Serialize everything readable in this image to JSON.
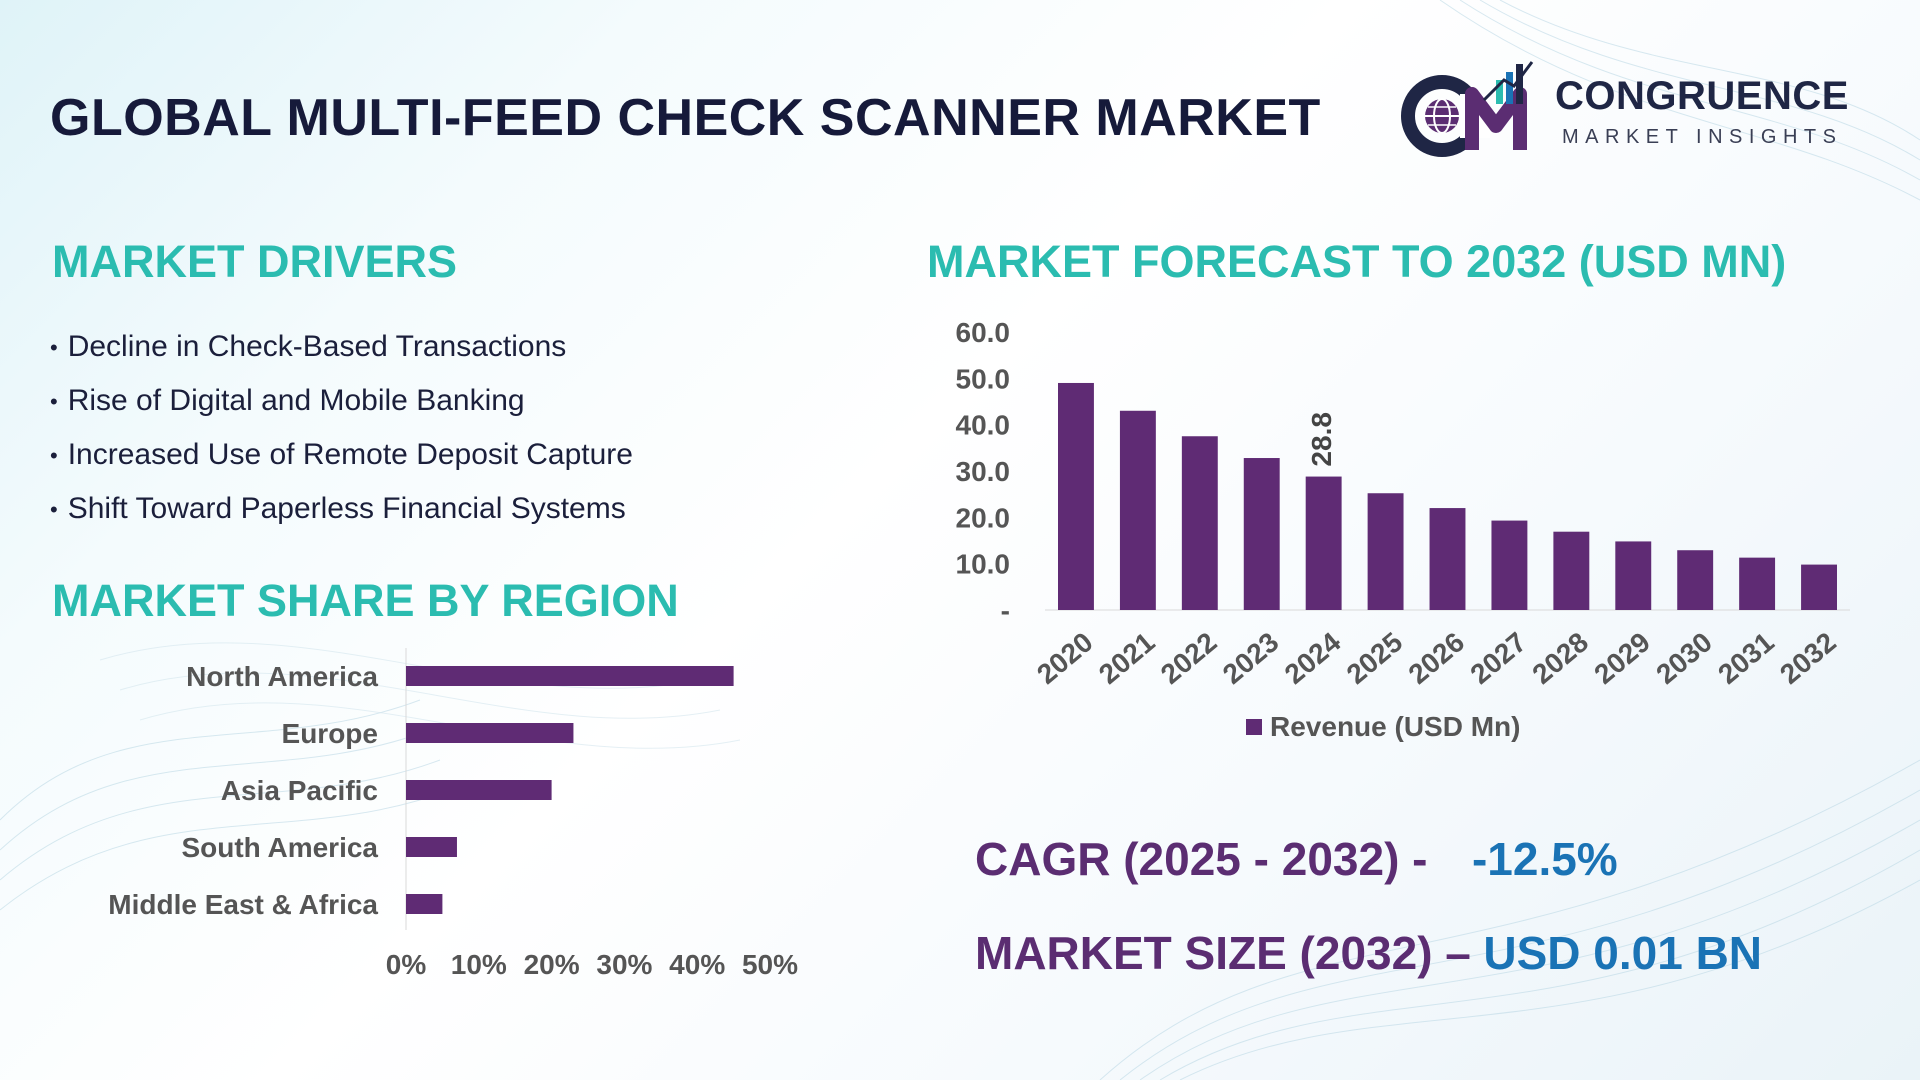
{
  "header": {
    "title": "GLOBAL MULTI-FEED CHECK SCANNER MARKET",
    "logo_name": "CONGRUENCE",
    "logo_sub": "MARKET INSIGHTS",
    "logo_initials": "CM"
  },
  "drivers": {
    "title": "MARKET DRIVERS",
    "items": [
      "Decline in Check-Based Transactions",
      "Rise of Digital and Mobile Banking",
      "Increased Use of Remote Deposit Capture",
      "Shift Toward Paperless Financial Systems"
    ]
  },
  "region": {
    "title": "MARKET SHARE BY REGION"
  },
  "forecast": {
    "title": "MARKET FORECAST TO 2032 (USD MN)"
  },
  "stats": {
    "cagr_label": "CAGR (2025 - 2032) -",
    "cagr_value": "-12.5%",
    "size_label": "MARKET SIZE (2032) –",
    "size_value": "USD 0.01 BN"
  },
  "colors": {
    "bar": "#5f2b74",
    "teal": "#2bbcb0",
    "navy": "#161a3a",
    "blue": "#1a73b5"
  },
  "chart_data": [
    {
      "type": "bar",
      "orientation": "vertical",
      "categories": [
        "2020",
        "2021",
        "2022",
        "2023",
        "2024",
        "2025",
        "2026",
        "2027",
        "2028",
        "2029",
        "2030",
        "2031",
        "2032"
      ],
      "series": [
        {
          "name": "Revenue (USD Mn)",
          "values": [
            49.0,
            43.0,
            37.5,
            32.8,
            28.8,
            25.2,
            22.0,
            19.3,
            16.9,
            14.8,
            12.9,
            11.3,
            9.8
          ]
        }
      ],
      "data_labels": [
        {
          "index": 4,
          "text": "28.8"
        }
      ],
      "yticks": [
        "-",
        "10.0",
        "20.0",
        "30.0",
        "40.0",
        "50.0",
        "60.0"
      ],
      "ylim": [
        0,
        60
      ],
      "legend": "bottom",
      "grid": false
    },
    {
      "type": "bar",
      "orientation": "horizontal",
      "categories": [
        "North America",
        "Europe",
        "Asia Pacific",
        "South America",
        "Middle East & Africa"
      ],
      "values": [
        45,
        23,
        20,
        7,
        5
      ],
      "xticks": [
        "0%",
        "10%",
        "20%",
        "30%",
        "40%",
        "50%"
      ],
      "xlim": [
        0,
        50
      ],
      "grid": false
    }
  ]
}
